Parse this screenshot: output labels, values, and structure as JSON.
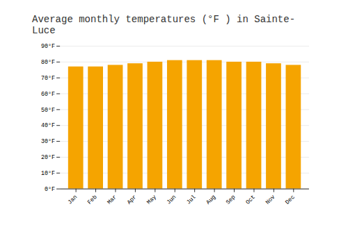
{
  "chart_data": {
    "type": "bar",
    "title": "Average monthly temperatures (°F ) in Sainte-Luce",
    "categories": [
      "Jan",
      "Feb",
      "Mar",
      "Apr",
      "May",
      "Jun",
      "Jul",
      "Aug",
      "Sep",
      "Oct",
      "Nov",
      "Dec"
    ],
    "values": [
      77,
      77,
      78,
      79,
      80,
      81,
      81,
      81,
      80,
      80,
      79,
      78
    ],
    "color": "#F5A400",
    "ylim": [
      0,
      90
    ],
    "yticks": [
      {
        "value": 0,
        "label": "0°F"
      },
      {
        "value": 10,
        "label": "10°F"
      },
      {
        "value": 20,
        "label": "20°F"
      },
      {
        "value": 30,
        "label": "30°F"
      },
      {
        "value": 40,
        "label": "40°F"
      },
      {
        "value": 50,
        "label": "50°F"
      },
      {
        "value": 60,
        "label": "60°F"
      },
      {
        "value": 70,
        "label": "70°F"
      },
      {
        "value": 80,
        "label": "80°F"
      },
      {
        "value": 90,
        "label": "90°F"
      }
    ],
    "grid": true
  }
}
